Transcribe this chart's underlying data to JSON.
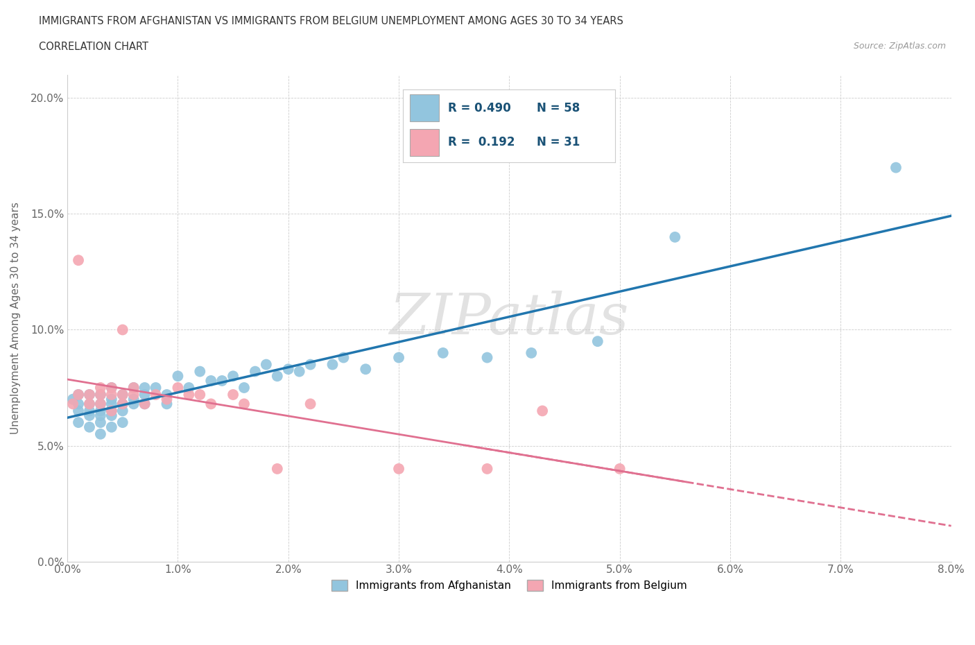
{
  "title_line1": "IMMIGRANTS FROM AFGHANISTAN VS IMMIGRANTS FROM BELGIUM UNEMPLOYMENT AMONG AGES 30 TO 34 YEARS",
  "title_line2": "CORRELATION CHART",
  "source_text": "Source: ZipAtlas.com",
  "ylabel": "Unemployment Among Ages 30 to 34 years",
  "watermark": "ZIPatlas",
  "afg_R": 0.49,
  "afg_N": 58,
  "bel_R": 0.192,
  "bel_N": 31,
  "afg_color": "#92c5de",
  "bel_color": "#f4a6b2",
  "afg_line_color": "#2176ae",
  "bel_line_color": "#e07090",
  "x_min": 0.0,
  "x_max": 0.08,
  "y_min": 0.0,
  "y_max": 0.21,
  "x_ticks": [
    0.0,
    0.01,
    0.02,
    0.03,
    0.04,
    0.05,
    0.06,
    0.07,
    0.08
  ],
  "x_tick_labels": [
    "0.0%",
    "1.0%",
    "2.0%",
    "3.0%",
    "4.0%",
    "5.0%",
    "6.0%",
    "7.0%",
    "8.0%"
  ],
  "y_ticks": [
    0.0,
    0.05,
    0.1,
    0.15,
    0.2
  ],
  "y_tick_labels": [
    "0.0%",
    "5.0%",
    "10.0%",
    "15.0%",
    "20.0%"
  ],
  "afg_x": [
    0.0005,
    0.001,
    0.001,
    0.001,
    0.001,
    0.002,
    0.002,
    0.002,
    0.002,
    0.002,
    0.003,
    0.003,
    0.003,
    0.003,
    0.003,
    0.003,
    0.004,
    0.004,
    0.004,
    0.004,
    0.004,
    0.004,
    0.005,
    0.005,
    0.005,
    0.005,
    0.006,
    0.006,
    0.006,
    0.007,
    0.007,
    0.007,
    0.008,
    0.009,
    0.009,
    0.01,
    0.011,
    0.012,
    0.013,
    0.014,
    0.015,
    0.016,
    0.017,
    0.018,
    0.019,
    0.02,
    0.021,
    0.022,
    0.024,
    0.025,
    0.027,
    0.03,
    0.034,
    0.038,
    0.042,
    0.048,
    0.055,
    0.075
  ],
  "afg_y": [
    0.07,
    0.068,
    0.072,
    0.065,
    0.06,
    0.072,
    0.068,
    0.065,
    0.063,
    0.058,
    0.072,
    0.068,
    0.065,
    0.063,
    0.06,
    0.055,
    0.075,
    0.07,
    0.068,
    0.065,
    0.063,
    0.058,
    0.072,
    0.068,
    0.065,
    0.06,
    0.075,
    0.07,
    0.068,
    0.075,
    0.072,
    0.068,
    0.075,
    0.072,
    0.068,
    0.08,
    0.075,
    0.082,
    0.078,
    0.078,
    0.08,
    0.075,
    0.082,
    0.085,
    0.08,
    0.083,
    0.082,
    0.085,
    0.085,
    0.088,
    0.083,
    0.088,
    0.09,
    0.088,
    0.09,
    0.095,
    0.14,
    0.17
  ],
  "bel_x": [
    0.0005,
    0.001,
    0.001,
    0.002,
    0.002,
    0.003,
    0.003,
    0.003,
    0.004,
    0.004,
    0.004,
    0.005,
    0.005,
    0.005,
    0.006,
    0.006,
    0.007,
    0.008,
    0.009,
    0.01,
    0.011,
    0.012,
    0.013,
    0.015,
    0.016,
    0.019,
    0.022,
    0.03,
    0.038,
    0.043,
    0.05
  ],
  "bel_y": [
    0.068,
    0.072,
    0.13,
    0.072,
    0.068,
    0.075,
    0.072,
    0.068,
    0.075,
    0.072,
    0.065,
    0.072,
    0.068,
    0.1,
    0.075,
    0.072,
    0.068,
    0.072,
    0.07,
    0.075,
    0.072,
    0.072,
    0.068,
    0.072,
    0.068,
    0.04,
    0.068,
    0.04,
    0.04,
    0.065,
    0.04
  ]
}
